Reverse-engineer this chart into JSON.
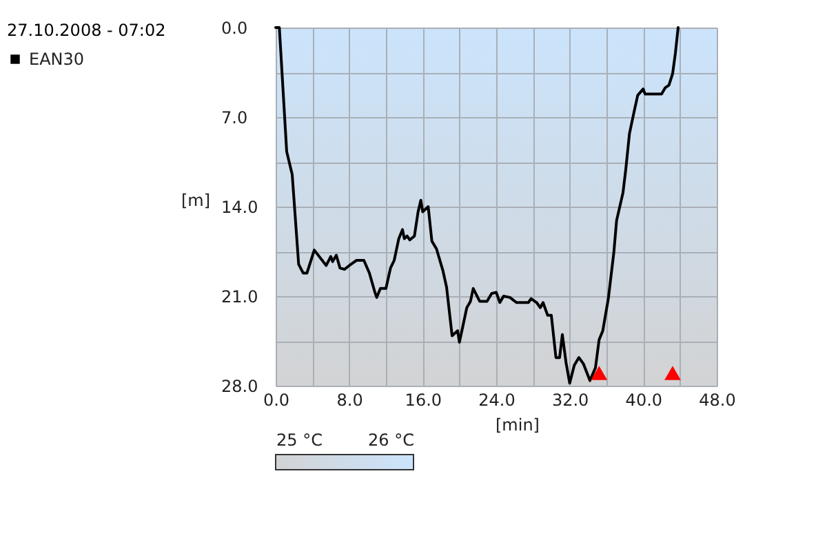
{
  "chart_data": {
    "type": "line",
    "title": "27.10.2008 - 07:02",
    "xlabel": "[min]",
    "ylabel": "[m]",
    "xlim": [
      0,
      48
    ],
    "xticks": [
      {
        "value": 0,
        "label": "0.0"
      },
      {
        "value": 4,
        "label": null
      },
      {
        "value": 8,
        "label": "8.0"
      },
      {
        "value": 12,
        "label": null
      },
      {
        "value": 16,
        "label": "16.0"
      },
      {
        "value": 20,
        "label": null
      },
      {
        "value": 24,
        "label": "24.0"
      },
      {
        "value": 28,
        "label": null
      },
      {
        "value": 32,
        "label": "32.0"
      },
      {
        "value": 36,
        "label": null
      },
      {
        "value": 40,
        "label": "40.0"
      },
      {
        "value": 44,
        "label": null
      },
      {
        "value": 48,
        "label": "48.0"
      }
    ],
    "ylim": [
      28,
      0
    ],
    "yticks": [
      {
        "value": 0,
        "label": "0.0"
      },
      {
        "value": 3.5,
        "label": null
      },
      {
        "value": 7,
        "label": "7.0"
      },
      {
        "value": 10.5,
        "label": null
      },
      {
        "value": 14,
        "label": "14.0"
      },
      {
        "value": 17.5,
        "label": null
      },
      {
        "value": 21,
        "label": "21.0"
      },
      {
        "value": 24.5,
        "label": null
      },
      {
        "value": 28,
        "label": "28.0"
      }
    ],
    "clim": [
      25,
      26
    ],
    "cticks": [
      {
        "value": 25,
        "label": "25 °C"
      },
      {
        "value": 26,
        "label": "26 °C"
      }
    ],
    "grid": true,
    "legend": "top left",
    "line_style": "solid",
    "series": [
      {
        "name": "EAN30",
        "color": "#000000",
        "x": [
          0,
          0.4,
          1.2,
          1.8,
          2.5,
          3.0,
          3.4,
          4.2,
          5.5,
          6.0,
          6.2,
          6.6,
          7.0,
          7.5,
          8.2,
          8.8,
          9.6,
          10.2,
          10.8,
          11.0,
          11.4,
          12.0,
          12.5,
          12.9,
          13.4,
          13.8,
          14.0,
          14.3,
          14.6,
          15.1,
          15.5,
          15.8,
          16.0,
          16.6,
          17.0,
          17.5,
          18.2,
          18.6,
          19.2,
          19.8,
          20.0,
          20.8,
          21.2,
          21.5,
          22.2,
          23.0,
          23.5,
          24.0,
          24.4,
          24.8,
          25.5,
          26.2,
          27.5,
          27.8,
          28.4,
          28.8,
          29.1,
          29.6,
          30.0,
          30.5,
          30.9,
          31.2,
          31.6,
          32.0,
          32.5,
          33.0,
          33.5,
          34.2,
          34.8,
          35.2,
          35.6,
          36.2,
          36.8,
          37.1,
          37.8,
          38.1,
          38.5,
          39.0,
          39.4,
          40.0,
          40.2,
          42.0,
          42.4,
          42.8,
          43.2,
          43.5,
          43.8
        ],
        "values": [
          0,
          0,
          9.7,
          11.5,
          18.5,
          19.2,
          19.2,
          17.4,
          18.6,
          17.9,
          18.3,
          17.8,
          18.8,
          18.9,
          18.5,
          18.2,
          18.2,
          19.2,
          20.7,
          21.1,
          20.4,
          20.4,
          18.8,
          18.2,
          16.5,
          15.8,
          16.5,
          16.3,
          16.6,
          16.3,
          14.4,
          13.5,
          14.4,
          14.0,
          16.7,
          17.3,
          19.0,
          20.3,
          24.1,
          23.7,
          24.6,
          21.9,
          21.4,
          20.4,
          21.4,
          21.4,
          20.8,
          20.7,
          21.5,
          21.0,
          21.1,
          21.5,
          21.5,
          21.2,
          21.5,
          21.9,
          21.5,
          22.5,
          22.5,
          25.8,
          25.8,
          24.0,
          26.2,
          27.8,
          26.4,
          25.8,
          26.3,
          27.6,
          26.6,
          24.4,
          23.7,
          21.2,
          17.6,
          15.1,
          12.9,
          11.1,
          8.3,
          6.6,
          5.3,
          4.8,
          5.2,
          5.2,
          4.7,
          4.5,
          3.6,
          2.0,
          0
        ]
      },
      {
        "type": "scatter",
        "marker": "triangle",
        "color": "#ff0000",
        "x": [
          35.2,
          43.2
        ],
        "values": [
          27.0,
          27.0
        ]
      }
    ]
  }
}
